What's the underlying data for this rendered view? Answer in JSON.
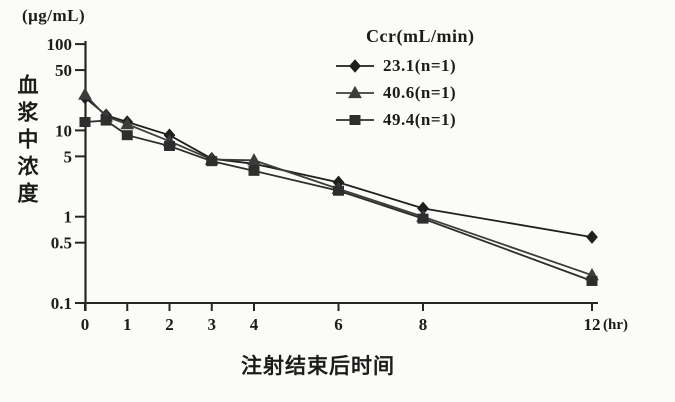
{
  "colors": {
    "ink": "#262626",
    "series_diamond": "#1f1f1f",
    "series_triangle": "#3c3c3c",
    "series_square": "#2e2e2e",
    "background": "#fbfbf8"
  },
  "chart_data": {
    "type": "line",
    "title": "",
    "xlabel": "注射结束后时间",
    "xunit": "(hr)",
    "ylabel": "血浆中浓度",
    "yunit": "(μg/mL)",
    "y_scale": "log",
    "ylim": [
      0.1,
      100
    ],
    "xlim": [
      0,
      12
    ],
    "x_ticks": [
      0,
      1,
      2,
      3,
      4,
      6,
      8,
      12
    ],
    "y_ticks": [
      100,
      50,
      10,
      5,
      1,
      0.5,
      0.1
    ],
    "grid": "off",
    "legend_title": "Ccr(mL/min)",
    "legend_position": "upper-right-inside",
    "x": [
      0,
      0.5,
      1,
      2,
      3,
      4,
      6,
      8,
      12
    ],
    "series": [
      {
        "name": "23.1(n=1)",
        "marker": "diamond",
        "values": [
          24,
          15,
          12.5,
          8.8,
          4.7,
          4.1,
          2.5,
          1.25,
          0.58
        ]
      },
      {
        "name": "40.6(n=1)",
        "marker": "triangle",
        "values": [
          26,
          14.5,
          11.8,
          7.5,
          4.6,
          4.5,
          2.1,
          1.0,
          0.21
        ]
      },
      {
        "name": "49.4(n=1)",
        "marker": "square",
        "values": [
          12.5,
          13,
          8.8,
          6.6,
          4.4,
          3.4,
          2.0,
          0.95,
          0.18
        ]
      }
    ]
  }
}
